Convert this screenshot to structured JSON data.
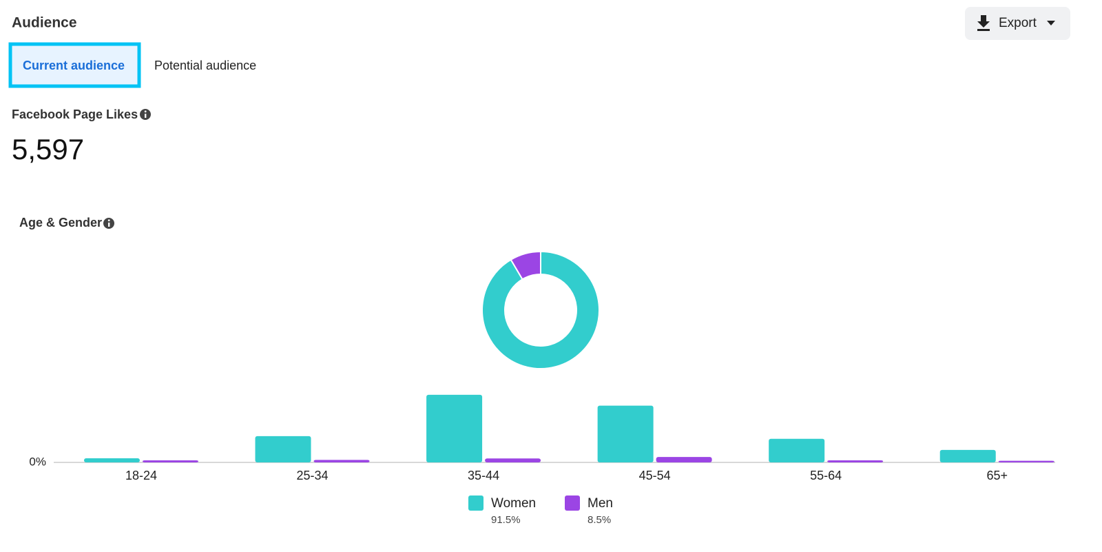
{
  "header": {
    "title": "Audience",
    "export": "Export"
  },
  "tabs": [
    "Current audience",
    "Potential audience"
  ],
  "metric": {
    "label": "Facebook Page Likes",
    "value": "5,597"
  },
  "section_title": "Age & Gender",
  "chart_data": [
    {
      "type": "pie",
      "donut": true,
      "values": [
        91.5,
        8.5
      ],
      "value_labels": [
        "91.5%",
        "8.5%"
      ],
      "colors": [
        "#32cdcd",
        "#9b45e4"
      ]
    },
    {
      "type": "bar",
      "categories": [
        "18-24",
        "25-34",
        "35-44",
        "45-54",
        "55-64",
        "65+"
      ],
      "series": [
        {
          "name": "Women",
          "color": "#32cdcd",
          "values": [
            2.0,
            12.6,
            32.4,
            27.2,
            11.3,
            6.0
          ]
        },
        {
          "name": "Men",
          "color": "#9b45e4",
          "values": [
            1.0,
            1.2,
            1.9,
            2.6,
            1.0,
            0.8
          ]
        }
      ],
      "ylim": [
        0,
        35
      ],
      "yticks": [
        {
          "value": 0,
          "label": "0%"
        }
      ]
    }
  ]
}
